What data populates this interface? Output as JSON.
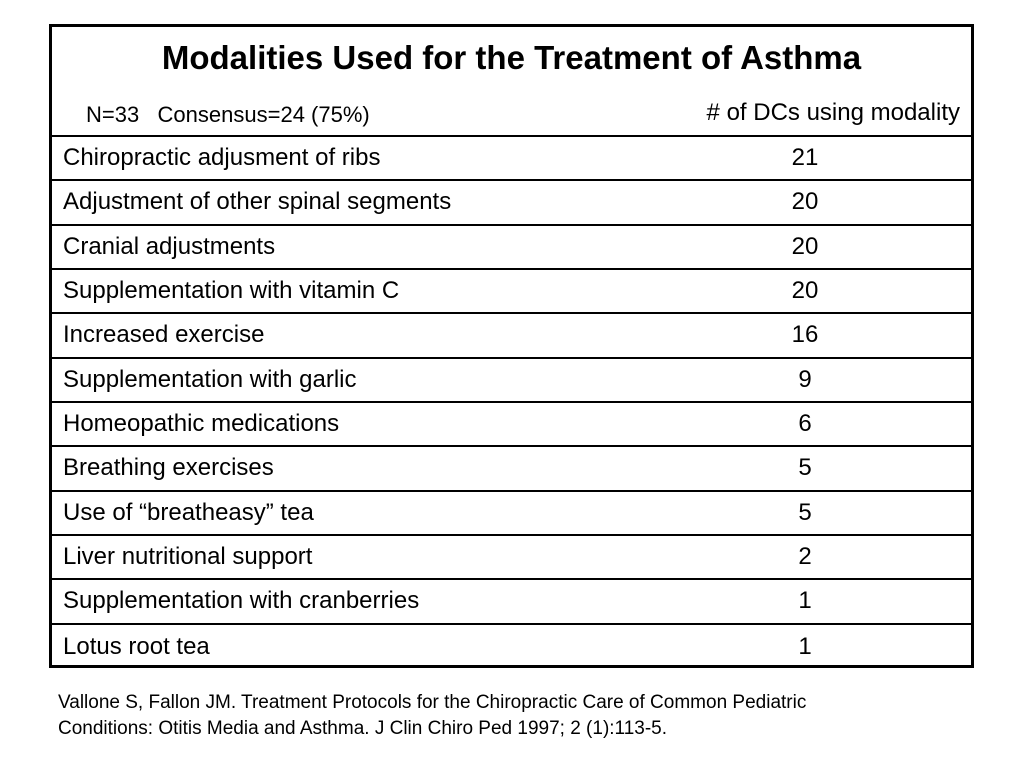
{
  "table": {
    "title": "Modalities Used for the Treatment of Asthma",
    "subtitle": "N=33   Consensus=24 (75%)",
    "column_header": "# of DCs using modality",
    "rows": [
      {
        "modality": "Chiropractic adjusment of ribs",
        "count": "21"
      },
      {
        "modality": "Adjustment of other spinal segments",
        "count": "20"
      },
      {
        "modality": "Cranial adjustments",
        "count": "20"
      },
      {
        "modality": "Supplementation with vitamin C",
        "count": "20"
      },
      {
        "modality": "Increased exercise",
        "count": "16"
      },
      {
        "modality": "Supplementation with garlic",
        "count": "9"
      },
      {
        "modality": "Homeopathic medications",
        "count": "6"
      },
      {
        "modality": "Breathing exercises",
        "count": "5"
      },
      {
        "modality": "Use of “breatheasy” tea",
        "count": "5"
      },
      {
        "modality": "Liver nutritional support",
        "count": "2"
      },
      {
        "modality": "Supplementation with cranberries",
        "count": "1"
      },
      {
        "modality": "Lotus root tea",
        "count": "1"
      }
    ]
  },
  "citation": {
    "line1": "Vallone S, Fallon JM.  Treatment Protocols for the Chiropractic Care of Common Pediatric",
    "line2": "Conditions: Otitis Media and Asthma. J Clin Chiro Ped 1997; 2 (1):113-5."
  }
}
